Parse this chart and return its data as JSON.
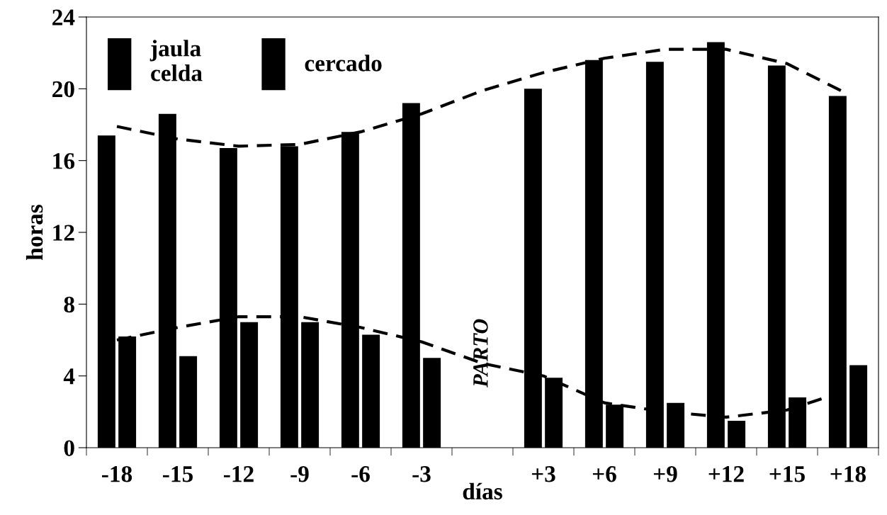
{
  "chart_data": {
    "type": "bar",
    "xlabel": "días",
    "ylabel": "horas",
    "categories": [
      "-18",
      "-15",
      "-12",
      "-9",
      "-6",
      "-3",
      null,
      "+3",
      "+6",
      "+9",
      "+12",
      "+15",
      "+18"
    ],
    "series": [
      {
        "name": "jaula\ncelda",
        "color": "#000000",
        "values": [
          17.4,
          18.6,
          16.7,
          16.8,
          17.6,
          19.2,
          null,
          20.0,
          21.6,
          21.5,
          22.6,
          21.3,
          19.6
        ]
      },
      {
        "name": "cercado",
        "color": "#000000",
        "values": [
          6.2,
          5.1,
          7.0,
          7.0,
          6.3,
          5.0,
          null,
          3.9,
          2.4,
          2.5,
          1.5,
          2.8,
          4.6
        ]
      },
      {
        "type": "line",
        "line_style": "dashed",
        "color": "#000000",
        "values": [
          17.9,
          17.2,
          16.8,
          16.9,
          17.6,
          18.6,
          19.9,
          20.9,
          21.7,
          22.2,
          22.2,
          21.4,
          19.7
        ]
      },
      {
        "type": "line",
        "line_style": "dashed",
        "color": "#000000",
        "values": [
          6.0,
          6.7,
          7.3,
          7.3,
          6.7,
          5.9,
          4.7,
          4.0,
          2.5,
          2.0,
          1.7,
          2.1,
          3.2
        ]
      }
    ],
    "annotations": [
      "PARTO"
    ],
    "ylim": [
      0,
      24
    ],
    "yticks": [
      0,
      4,
      8,
      12,
      16,
      20,
      24
    ],
    "grid": false,
    "legend": "top left"
  }
}
